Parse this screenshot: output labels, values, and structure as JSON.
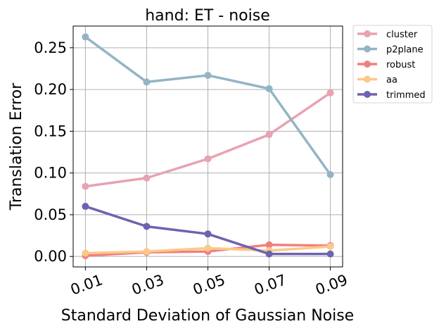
{
  "chart_data": {
    "type": "line",
    "title": "hand: ET - noise",
    "xlabel": "Standard Deviation of Gaussian Noise",
    "ylabel": "Translation Error",
    "x": [
      "0.01",
      "0.03",
      "0.05",
      "0.07",
      "0.09"
    ],
    "xlim": [
      0.006,
      0.094
    ],
    "ylim": [
      -0.0125,
      0.276
    ],
    "yticks": [
      "0.00",
      "0.05",
      "0.10",
      "0.15",
      "0.20",
      "0.25"
    ],
    "grid": true,
    "legend_position": "outside-right",
    "series": [
      {
        "name": "cluster",
        "color": "#e8a2b2",
        "values": [
          0.084,
          0.094,
          0.117,
          0.146,
          0.196
        ]
      },
      {
        "name": "p2plane",
        "color": "#94b4c5",
        "values": [
          0.263,
          0.209,
          0.217,
          0.201,
          0.098
        ]
      },
      {
        "name": "robust",
        "color": "#f08080",
        "values": [
          0.001,
          0.005,
          0.006,
          0.014,
          0.013
        ]
      },
      {
        "name": "aa",
        "color": "#fcc98a",
        "values": [
          0.004,
          0.006,
          0.01,
          0.007,
          0.012
        ]
      },
      {
        "name": "trimmed",
        "color": "#6e63b0",
        "values": [
          0.06,
          0.036,
          0.027,
          0.003,
          0.003
        ]
      }
    ]
  }
}
